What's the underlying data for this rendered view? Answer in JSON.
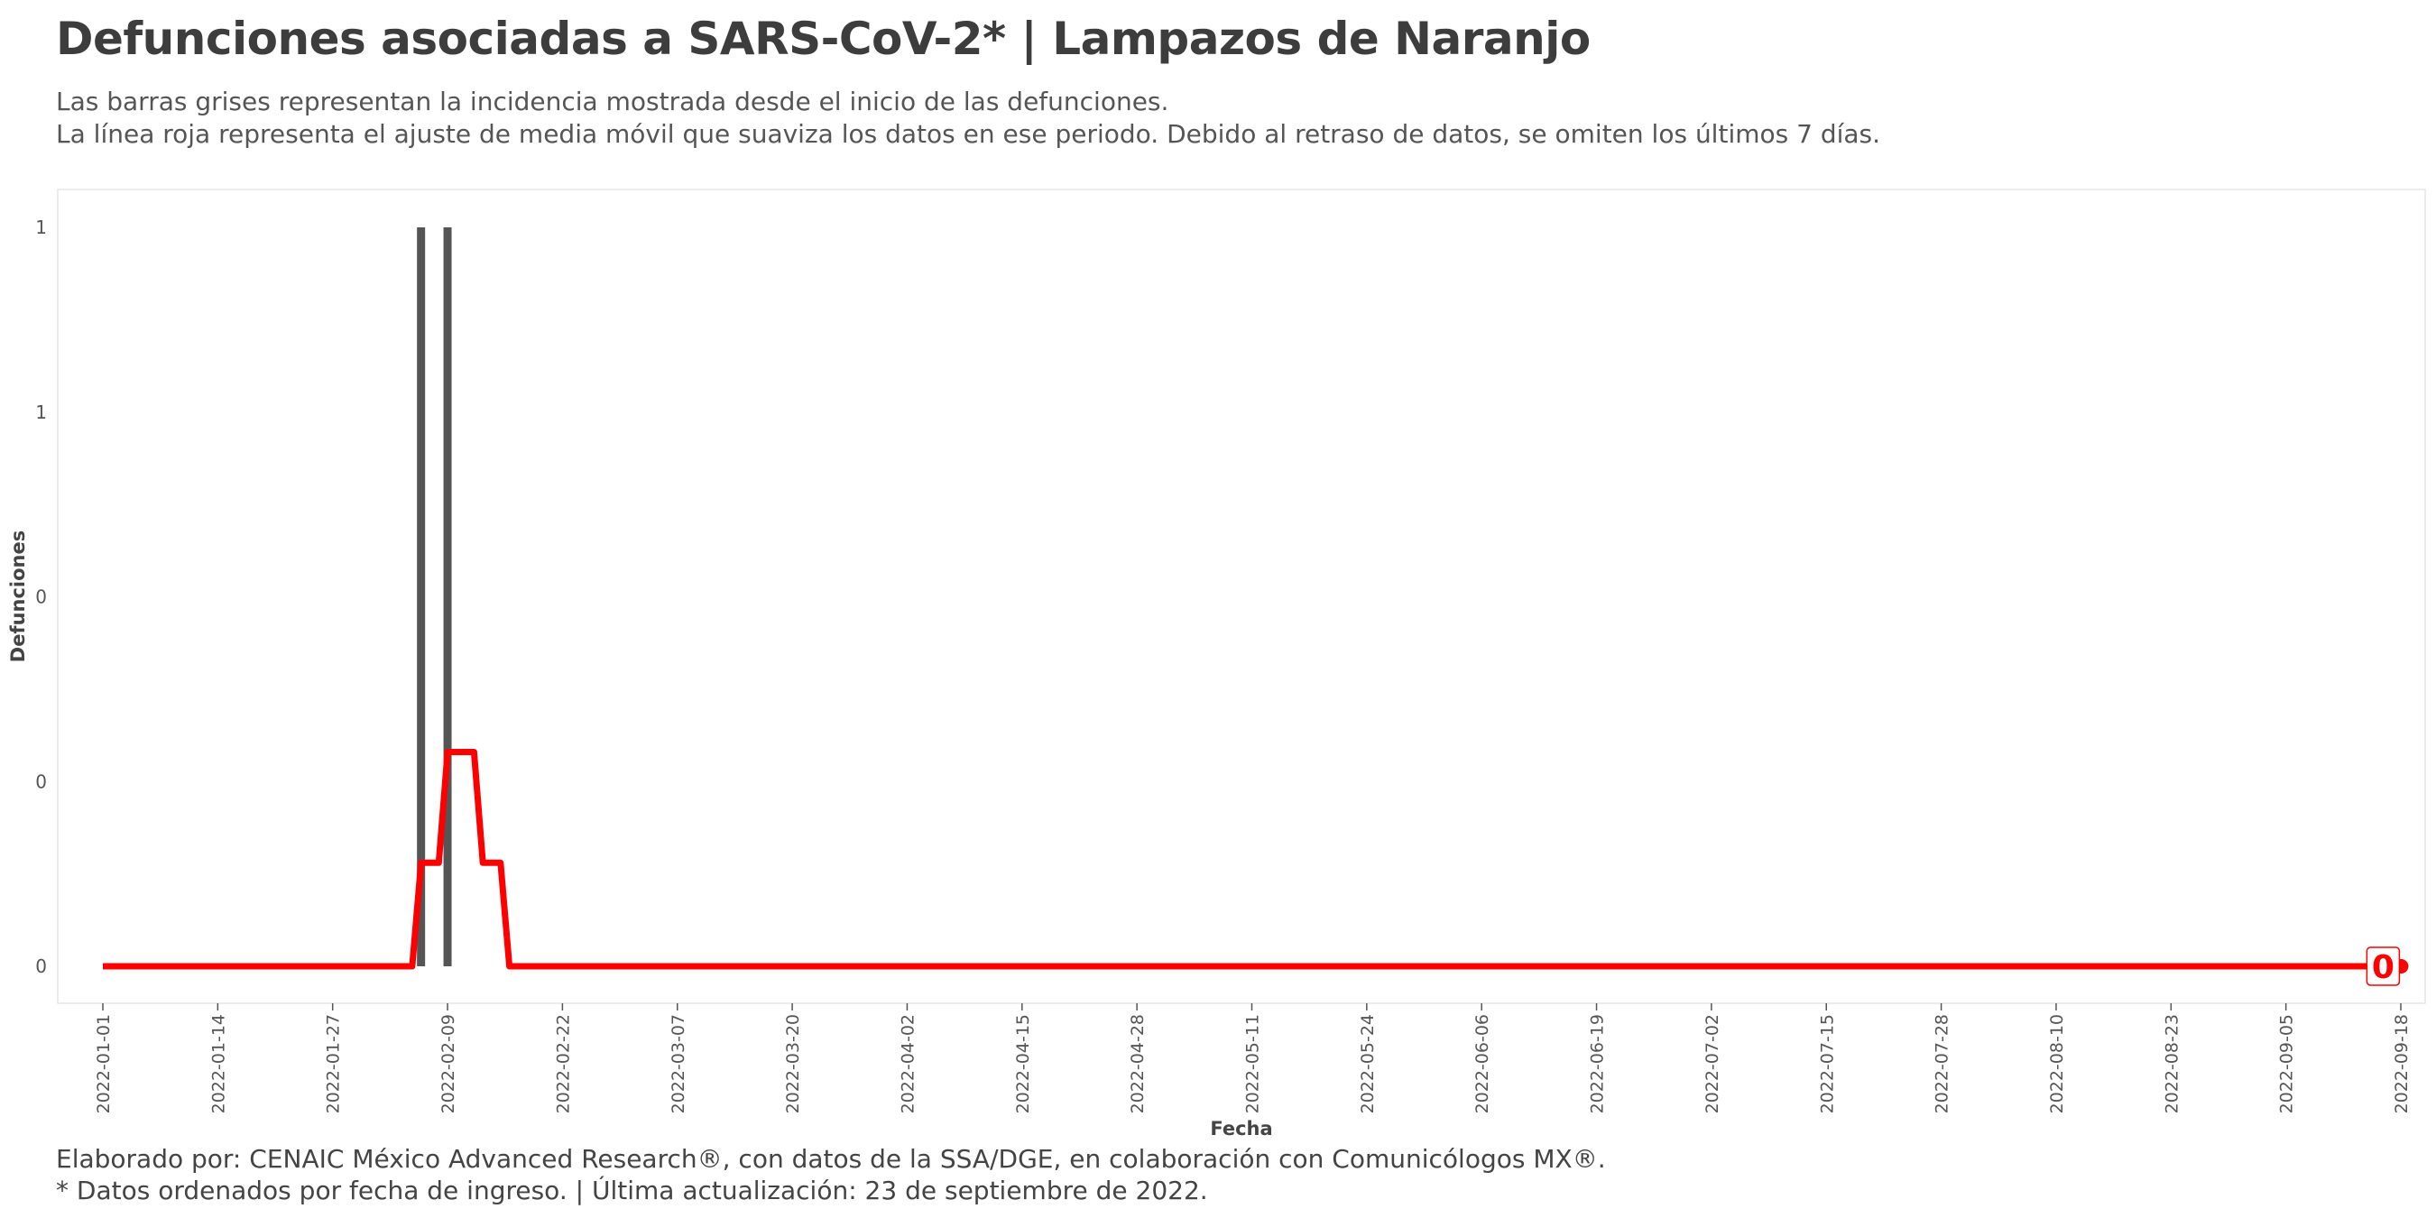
{
  "header": {
    "title": "Defunciones asociadas a SARS-CoV-2* | Lampazos de Naranjo",
    "subtitle_line1": "Las barras grises representan la incidencia mostrada desde el inicio de las defunciones.",
    "subtitle_line2": "La línea roja representa el ajuste de media móvil que suaviza los datos en ese periodo. Debido al retraso de datos, se omiten los últimos 7 días."
  },
  "footer": {
    "caption_line1": "Elaborado por: CENAIC México Advanced Research®, con datos de la SSA/DGE, en colaboración con Comunicólogos MX®.",
    "caption_line2": "* Datos ordenados por fecha de ingreso. | Última actualización: 23 de septiembre de 2022."
  },
  "colors": {
    "bars": "#555555",
    "moving_average": "#ff0000",
    "panel_border": "#e6e6e6",
    "background": "#ffffff"
  },
  "chart_data": {
    "type": "bar",
    "xlabel": "Fecha",
    "ylabel": "Defunciones",
    "x_range": [
      "2022-01-01",
      "2022-09-18"
    ],
    "y_range": [
      0,
      1
    ],
    "grid": false,
    "y_tick_values": [
      0,
      0.25,
      0.5,
      0.75,
      1
    ],
    "y_tick_labels": [
      "0",
      "0",
      "0",
      "1",
      "1"
    ],
    "x_tick_labels": [
      "2022-01-01",
      "2022-01-14",
      "2022-01-27",
      "2022-02-09",
      "2022-02-22",
      "2022-03-07",
      "2022-03-20",
      "2022-04-02",
      "2022-04-15",
      "2022-04-28",
      "2022-05-11",
      "2022-05-24",
      "2022-06-06",
      "2022-06-19",
      "2022-07-02",
      "2022-07-15",
      "2022-07-28",
      "2022-08-10",
      "2022-08-23",
      "2022-09-05",
      "2022-09-18"
    ],
    "series": [
      {
        "kind": "bar",
        "points": [
          {
            "date": "2022-02-06",
            "value": 1
          },
          {
            "date": "2022-02-09",
            "value": 1
          }
        ]
      },
      {
        "kind": "line",
        "points": [
          {
            "date": "2022-01-01",
            "value": 0
          },
          {
            "date": "2022-02-05",
            "value": 0
          },
          {
            "date": "2022-02-06",
            "value": 0.14
          },
          {
            "date": "2022-02-08",
            "value": 0.14
          },
          {
            "date": "2022-02-09",
            "value": 0.29
          },
          {
            "date": "2022-02-12",
            "value": 0.29
          },
          {
            "date": "2022-02-13",
            "value": 0.14
          },
          {
            "date": "2022-02-15",
            "value": 0.14
          },
          {
            "date": "2022-02-16",
            "value": 0
          },
          {
            "date": "2022-09-16",
            "value": 0
          }
        ],
        "end_marker": {
          "date": "2022-09-16",
          "value": 0,
          "label": "0"
        }
      }
    ]
  }
}
